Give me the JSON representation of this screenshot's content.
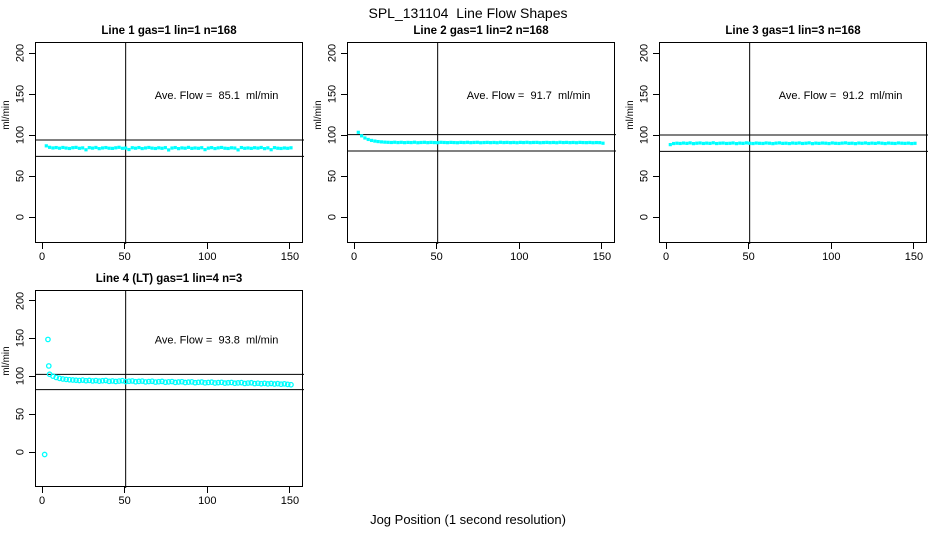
{
  "page": {
    "title": "SPL_131104  Line Flow Shapes",
    "xlabel": "Jog Position (1 second resolution)"
  },
  "colors": {
    "points": "#00FFFF",
    "lines": "#000000",
    "background": "#FFFFFF"
  },
  "chart_data": [
    {
      "type": "scatter",
      "title": "Line 1 gas=1 lin=1 n=168",
      "ylabel": "ml/min",
      "avg_flow": 85.1,
      "annotation": "Ave. Flow =  85.1  ml/min",
      "ref_lines_y": [
        95.1,
        75.1
      ],
      "ref_line_x": 50,
      "x_ticks": [
        0,
        50,
        100,
        150
      ],
      "y_ticks": [
        0,
        50,
        100,
        150,
        200
      ],
      "xlim": [
        -4,
        158
      ],
      "ylim": [
        -32,
        213
      ],
      "marker": "dot",
      "series": {
        "x_start": 2,
        "x_step": 2,
        "y": [
          88.0,
          86.2,
          85.4,
          85.9,
          85.1,
          86.0,
          85.3,
          84.8,
          85.7,
          86.1,
          85.0,
          85.5,
          83.2,
          85.8,
          85.2,
          86.0,
          84.6,
          85.4,
          85.9,
          85.1,
          84.9,
          85.6,
          86.2,
          85.0,
          85.3,
          83.5,
          85.7,
          85.1,
          85.9,
          84.7,
          85.4,
          86.0,
          85.2,
          84.8,
          85.6,
          85.0,
          85.8,
          83.0,
          85.3,
          85.9,
          84.6,
          85.5,
          85.1,
          86.1,
          84.9,
          85.4,
          85.0,
          85.7,
          83.4,
          85.2,
          85.8,
          84.7,
          85.5,
          86.0,
          85.1,
          84.8,
          85.6,
          85.3,
          83.1,
          85.9,
          85.0,
          85.4,
          84.9,
          85.7,
          85.2,
          86.0,
          84.6,
          85.5,
          83.3,
          85.8,
          85.1,
          84.8,
          85.4,
          85.0,
          85.6
        ]
      },
      "extra_points": []
    },
    {
      "type": "scatter",
      "title": "Line 2 gas=1 lin=2 n=168",
      "ylabel": "ml/min",
      "avg_flow": 91.7,
      "annotation": "Ave. Flow =  91.7  ml/min",
      "ref_lines_y": [
        101.7,
        81.7
      ],
      "ref_line_x": 50,
      "x_ticks": [
        0,
        50,
        100,
        150
      ],
      "y_ticks": [
        0,
        50,
        100,
        150,
        200
      ],
      "xlim": [
        -4,
        158
      ],
      "ylim": [
        -32,
        213
      ],
      "marker": "dot",
      "series": {
        "x_start": 2,
        "x_step": 2,
        "y": [
          104.5,
          100.2,
          97.6,
          95.8,
          94.6,
          93.8,
          93.2,
          92.8,
          92.5,
          92.3,
          92.1,
          92.4,
          92.0,
          92.3,
          91.9,
          92.2,
          92.0,
          92.4,
          91.8,
          92.1,
          92.3,
          91.9,
          92.2,
          92.0,
          91.8,
          92.3,
          92.1,
          91.9,
          92.2,
          92.0,
          91.8,
          92.2,
          92.0,
          92.3,
          91.9,
          92.1,
          92.3,
          91.8,
          92.0,
          92.2,
          91.9,
          92.1,
          91.8,
          92.3,
          92.0,
          92.2,
          91.9,
          92.1,
          91.8,
          92.2,
          92.0,
          92.3,
          91.9,
          92.1,
          92.2,
          91.8,
          92.0,
          92.2,
          91.9,
          92.1,
          91.8,
          92.3,
          92.0,
          92.2,
          91.9,
          92.1,
          91.8,
          92.2,
          92.0,
          91.9,
          92.1,
          91.8,
          92.0,
          91.9,
          91.2
        ]
      },
      "extra_points": []
    },
    {
      "type": "scatter",
      "title": "Line 3 gas=1 lin=3 n=168",
      "ylabel": "ml/min",
      "avg_flow": 91.2,
      "annotation": "Ave. Flow =  91.2  ml/min",
      "ref_lines_y": [
        101.2,
        81.2
      ],
      "ref_line_x": 50,
      "x_ticks": [
        0,
        50,
        100,
        150
      ],
      "y_ticks": [
        0,
        50,
        100,
        150,
        200
      ],
      "xlim": [
        -4,
        158
      ],
      "ylim": [
        -32,
        213
      ],
      "marker": "dot",
      "series": {
        "x_start": 2,
        "x_step": 2,
        "y": [
          89.5,
          90.8,
          91.2,
          90.9,
          91.4,
          91.0,
          91.6,
          90.7,
          91.2,
          91.5,
          90.9,
          91.3,
          91.0,
          91.7,
          90.8,
          91.2,
          91.4,
          90.9,
          91.1,
          91.5,
          90.7,
          91.3,
          91.0,
          91.6,
          91.2,
          90.8,
          91.4,
          91.1,
          90.9,
          91.5,
          91.2,
          90.7,
          91.3,
          91.6,
          91.0,
          91.2,
          90.8,
          91.4,
          91.1,
          91.5,
          90.9,
          91.2,
          91.6,
          90.7,
          91.3,
          91.0,
          91.4,
          91.2,
          90.8,
          91.5,
          91.1,
          90.9,
          91.3,
          91.6,
          91.0,
          91.2,
          90.7,
          91.4,
          91.1,
          91.5,
          90.9,
          91.3,
          91.0,
          91.6,
          91.2,
          90.8,
          91.4,
          91.1,
          90.9,
          91.5,
          91.2,
          91.0,
          91.3,
          90.8,
          91.1
        ]
      },
      "extra_points": []
    },
    {
      "type": "scatter",
      "title": "Line 4 (LT) gas=1 lin=4 n=3",
      "ylabel": "ml/min",
      "avg_flow": 93.8,
      "annotation": "Ave. Flow =  93.8  ml/min",
      "ref_lines_y": [
        103.8,
        83.8
      ],
      "ref_line_x": 50,
      "x_ticks": [
        0,
        50,
        100,
        150
      ],
      "y_ticks": [
        0,
        50,
        100,
        150,
        200
      ],
      "xlim": [
        -4,
        158
      ],
      "ylim": [
        -46,
        214
      ],
      "marker": "open-circle",
      "series": {
        "x_start": 4,
        "x_step": 2,
        "y": [
          104.0,
          101.5,
          99.8,
          98.6,
          97.8,
          97.2,
          96.8,
          96.4,
          96.1,
          95.8,
          96.3,
          95.5,
          95.9,
          95.2,
          95.7,
          94.9,
          95.4,
          95.8,
          94.7,
          95.2,
          94.5,
          95.0,
          95.5,
          94.3,
          94.8,
          95.2,
          94.1,
          94.6,
          95.0,
          93.9,
          94.4,
          94.8,
          93.7,
          94.2,
          94.6,
          93.5,
          94.0,
          94.4,
          93.3,
          93.8,
          94.2,
          93.1,
          93.6,
          94.0,
          92.9,
          93.4,
          93.8,
          92.7,
          93.2,
          93.6,
          92.5,
          93.0,
          93.4,
          92.3,
          92.8,
          93.2,
          92.1,
          92.6,
          93.0,
          91.9,
          92.4,
          92.8,
          91.7,
          92.2,
          91.5,
          92.0,
          91.3,
          91.8,
          91.1,
          91.6,
          90.9,
          91.4,
          90.7,
          90.2
        ]
      },
      "extra_points": [
        [
          1,
          -2
        ],
        [
          3,
          150
        ],
        [
          3.5,
          115
        ]
      ]
    }
  ]
}
